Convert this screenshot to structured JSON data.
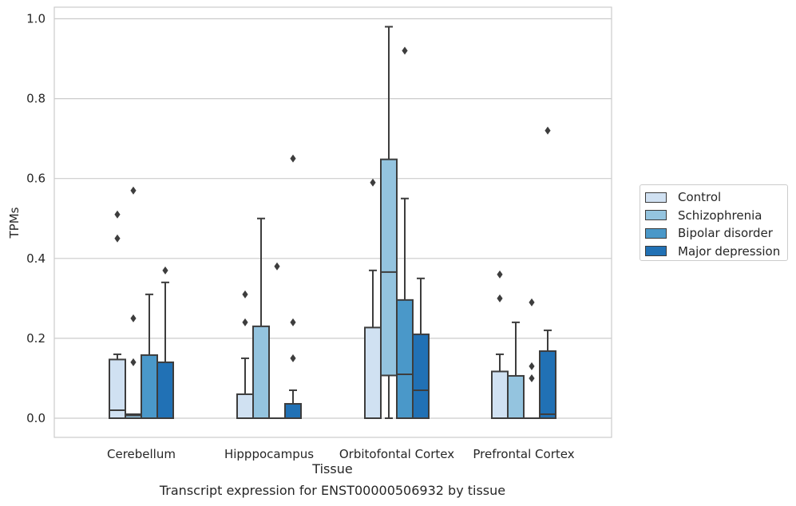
{
  "chart_data": {
    "type": "box",
    "caption": "Transcript expression for ENST00000506932 by tissue",
    "xlabel": "Tissue",
    "ylabel": "TPMs",
    "ylim": [
      -0.045,
      1.03
    ],
    "yticks": [
      0.0,
      0.2,
      0.4,
      0.6,
      0.8,
      1.0
    ],
    "grid": true,
    "legend_position": "right",
    "categories": [
      "Cerebellum",
      "Hipppocampus",
      "Orbitofontal Cortex",
      "Prefrontal Cortex"
    ],
    "series": [
      {
        "name": "Control",
        "color": "#d0e1f2",
        "boxes": [
          {
            "q1": 0.0,
            "median": 0.02,
            "q3": 0.147,
            "whisker_low": 0.0,
            "whisker_high": 0.16,
            "outliers": [
              0.45,
              0.51
            ]
          },
          {
            "q1": 0.0,
            "median": 0.0,
            "q3": 0.06,
            "whisker_low": 0.0,
            "whisker_high": 0.15,
            "outliers": [
              0.24,
              0.31
            ]
          },
          {
            "q1": 0.0,
            "median": 0.0,
            "q3": 0.227,
            "whisker_low": 0.0,
            "whisker_high": 0.37,
            "outliers": [
              0.59
            ]
          },
          {
            "q1": 0.0,
            "median": 0.0,
            "q3": 0.117,
            "whisker_low": 0.0,
            "whisker_high": 0.16,
            "outliers": [
              0.3,
              0.36
            ]
          }
        ]
      },
      {
        "name": "Schizophrenia",
        "color": "#94c4df",
        "boxes": [
          {
            "q1": 0.0,
            "median": 0.007,
            "q3": 0.01,
            "whisker_low": 0.0,
            "whisker_high": 0.01,
            "outliers": [
              0.14,
              0.25,
              0.57
            ]
          },
          {
            "q1": 0.0,
            "median": 0.0,
            "q3": 0.23,
            "whisker_low": 0.0,
            "whisker_high": 0.5,
            "outliers": []
          },
          {
            "q1": 0.107,
            "median": 0.366,
            "q3": 0.648,
            "whisker_low": 0.0,
            "whisker_high": 0.98,
            "outliers": []
          },
          {
            "q1": 0.0,
            "median": 0.0,
            "q3": 0.106,
            "whisker_low": 0.0,
            "whisker_high": 0.24,
            "outliers": []
          }
        ]
      },
      {
        "name": "Bipolar disorder",
        "color": "#4a98c9",
        "boxes": [
          {
            "q1": 0.0,
            "median": 0.0,
            "q3": 0.158,
            "whisker_low": 0.0,
            "whisker_high": 0.31,
            "outliers": []
          },
          {
            "q1": 0.0,
            "median": 0.0,
            "q3": 0.0,
            "whisker_low": 0.0,
            "whisker_high": 0.0,
            "outliers": [
              0.38
            ]
          },
          {
            "q1": 0.0,
            "median": 0.11,
            "q3": 0.296,
            "whisker_low": 0.0,
            "whisker_high": 0.55,
            "outliers": [
              0.92
            ]
          },
          {
            "q1": 0.0,
            "median": 0.0,
            "q3": 0.0,
            "whisker_low": 0.0,
            "whisker_high": 0.0,
            "outliers": [
              0.1,
              0.13,
              0.29
            ]
          }
        ]
      },
      {
        "name": "Major depression",
        "color": "#2171b5",
        "boxes": [
          {
            "q1": 0.0,
            "median": 0.0,
            "q3": 0.14,
            "whisker_low": 0.0,
            "whisker_high": 0.34,
            "outliers": [
              0.37
            ]
          },
          {
            "q1": 0.0,
            "median": 0.0,
            "q3": 0.036,
            "whisker_low": 0.0,
            "whisker_high": 0.07,
            "outliers": [
              0.15,
              0.24,
              0.65
            ]
          },
          {
            "q1": 0.0,
            "median": 0.07,
            "q3": 0.21,
            "whisker_low": 0.0,
            "whisker_high": 0.35,
            "outliers": []
          },
          {
            "q1": 0.0,
            "median": 0.01,
            "q3": 0.168,
            "whisker_low": 0.0,
            "whisker_high": 0.22,
            "outliers": [
              0.72
            ]
          }
        ]
      }
    ]
  }
}
